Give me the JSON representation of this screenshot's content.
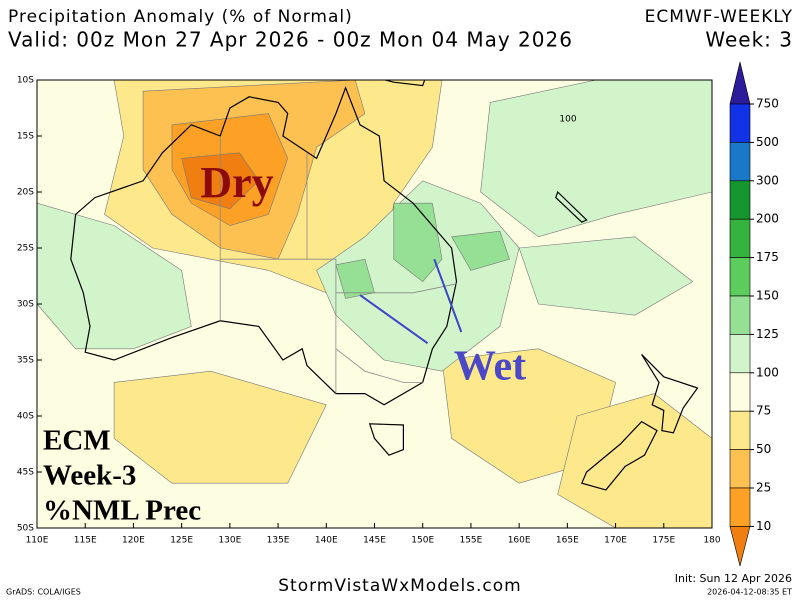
{
  "header": {
    "title": "Precipitation Anomaly (% of Normal)",
    "valid": "Valid: 00z Mon 27 Apr 2026 - 00z Mon 04 May 2026",
    "model": "ECMWF-WEEKLY",
    "week": "Week: 3"
  },
  "map": {
    "lat_labels": [
      "10S",
      "15S",
      "20S",
      "25S",
      "30S",
      "35S",
      "40S",
      "45S",
      "50S"
    ],
    "lon_labels": [
      "110E",
      "115E",
      "120E",
      "125E",
      "130E",
      "135E",
      "140E",
      "145E",
      "150E",
      "155E",
      "160E",
      "165E",
      "170E",
      "175E",
      "180"
    ],
    "contour_label": "100",
    "annotations": {
      "dry": "Dry",
      "wet": "Wet",
      "box": [
        "ECM",
        "Week-3",
        "%NML Prec"
      ]
    }
  },
  "colorbar": {
    "levels": [
      750,
      500,
      300,
      200,
      175,
      150,
      125,
      100,
      75,
      50,
      25,
      10
    ],
    "colors": [
      "#2c1c9c",
      "#1232e6",
      "#1a78c8",
      "#15962e",
      "#36b23e",
      "#5ccc5c",
      "#96e096",
      "#d2f4ca",
      "#fdfde2",
      "#fde98c",
      "#fdc152",
      "#fda126",
      "#f07e10"
    ]
  },
  "footer": {
    "credit": "GrADS: COLA/IGES",
    "site": "StormVistaWxModels.com",
    "init": "Init: Sun 12 Apr 2026",
    "stamp": "2026-04-12-08:35 ET"
  }
}
